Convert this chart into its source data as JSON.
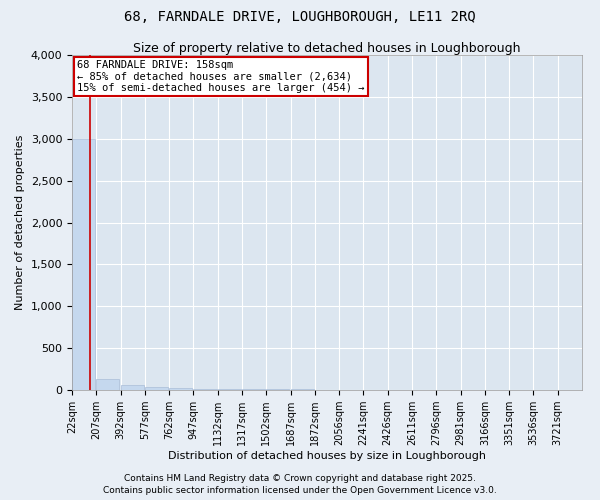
{
  "title": "68, FARNDALE DRIVE, LOUGHBOROUGH, LE11 2RQ",
  "subtitle": "Size of property relative to detached houses in Loughborough",
  "xlabel": "Distribution of detached houses by size in Loughborough",
  "ylabel": "Number of detached properties",
  "footnote1": "Contains HM Land Registry data © Crown copyright and database right 2025.",
  "footnote2": "Contains public sector information licensed under the Open Government Licence v3.0.",
  "annotation_line1": "68 FARNDALE DRIVE: 158sqm",
  "annotation_line2": "← 85% of detached houses are smaller (2,634)",
  "annotation_line3": "15% of semi-detached houses are larger (454) →",
  "bar_bins": [
    22,
    207,
    392,
    577,
    762,
    947,
    1132,
    1317,
    1502,
    1687,
    1872,
    2056,
    2241,
    2426,
    2611,
    2796,
    2981,
    3166,
    3351,
    3536,
    3721
  ],
  "bar_values": [
    3000,
    130,
    55,
    35,
    22,
    16,
    12,
    9,
    7,
    6,
    5,
    4,
    4,
    3,
    3,
    2,
    2,
    2,
    1,
    1
  ],
  "bar_color": "#c5d8ee",
  "bar_edge_color": "#aabdd8",
  "property_size": 158,
  "property_line_color": "#cc0000",
  "annotation_box_color": "#cc0000",
  "ylim": [
    0,
    4000
  ],
  "yticks": [
    0,
    500,
    1000,
    1500,
    2000,
    2500,
    3000,
    3500,
    4000
  ],
  "background_color": "#e8eef5",
  "plot_background": "#dce6f0",
  "grid_color": "#ffffff",
  "title_fontsize": 10,
  "subtitle_fontsize": 9,
  "axis_label_fontsize": 8,
  "tick_fontsize": 7,
  "annotation_fontsize": 7.5,
  "footnote_fontsize": 6.5
}
